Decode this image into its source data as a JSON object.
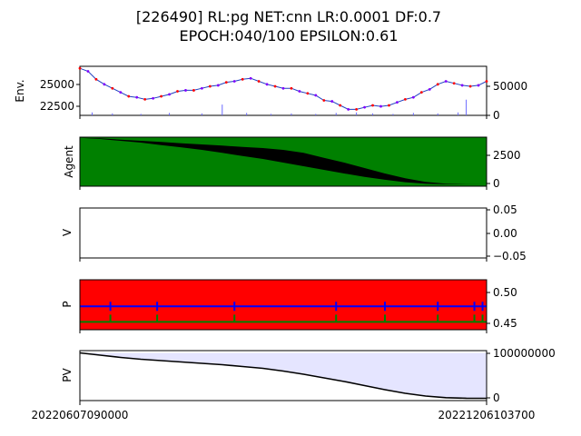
{
  "figure": {
    "title_line1": "[226490] RL:pg NET:cnn LR:0.0001 DF:0.7",
    "title_line2": "EPOCH:040/100 EPSILON:0.61",
    "x_start_label": "20220607090000",
    "x_end_label": "20221206103700"
  },
  "colors": {
    "price_line": "#1f3fbf",
    "buy_marker": "#ff0000",
    "sell_marker": "#8000ff",
    "volume": "#6a6aff",
    "agent_fill": "#008000",
    "agent_line": "#000000",
    "p_background": "#ff0000",
    "p_blue": "#0000ff",
    "p_green": "#008000",
    "pv_fill": "#e5e5ff",
    "pv_line": "#000000"
  },
  "chart_data": [
    {
      "type": "line",
      "ylabel": "Env.",
      "yticks_left": [
        "25000",
        "22500"
      ],
      "yticks_right": [
        "50000",
        "0"
      ],
      "price_ylim": [
        21900,
        26800
      ],
      "volume_ylim": [
        0,
        100000
      ],
      "price_series": {
        "x": [
          0,
          0.02,
          0.04,
          0.06,
          0.08,
          0.1,
          0.12,
          0.14,
          0.16,
          0.18,
          0.2,
          0.22,
          0.24,
          0.26,
          0.28,
          0.3,
          0.32,
          0.34,
          0.36,
          0.38,
          0.4,
          0.42,
          0.44,
          0.46,
          0.48,
          0.5,
          0.52,
          0.54,
          0.56,
          0.58,
          0.6,
          0.62,
          0.64,
          0.66,
          0.68,
          0.7,
          0.72,
          0.74,
          0.76,
          0.78,
          0.8,
          0.82,
          0.84,
          0.86,
          0.88,
          0.9,
          0.92,
          0.94,
          0.96,
          0.98,
          1.0
        ],
        "values": [
          26600,
          26300,
          25500,
          25000,
          24600,
          24200,
          23800,
          23700,
          23500,
          23600,
          23800,
          24000,
          24300,
          24400,
          24400,
          24600,
          24800,
          24900,
          25200,
          25300,
          25500,
          25600,
          25300,
          25000,
          24800,
          24600,
          24600,
          24300,
          24100,
          23900,
          23400,
          23300,
          22900,
          22500,
          22500,
          22700,
          22900,
          22800,
          22900,
          23200,
          23500,
          23700,
          24200,
          24500,
          25000,
          25300,
          25100,
          24900,
          24800,
          24900,
          25300
        ]
      },
      "volume_series": {
        "x": [
          0.03,
          0.08,
          0.15,
          0.22,
          0.3,
          0.35,
          0.41,
          0.47,
          0.52,
          0.58,
          0.63,
          0.68,
          0.72,
          0.77,
          0.82,
          0.88,
          0.93,
          0.95
        ],
        "values": [
          6000,
          4000,
          3000,
          5000,
          4000,
          22000,
          5000,
          3000,
          4000,
          3000,
          5000,
          6000,
          4000,
          3000,
          5000,
          4000,
          6000,
          32000
        ]
      }
    },
    {
      "type": "area",
      "ylabel": "Agent",
      "yticks_right": [
        "2500",
        "0"
      ],
      "ylim": [
        -150,
        3900
      ],
      "x": [
        0,
        0.05,
        0.1,
        0.15,
        0.2,
        0.25,
        0.3,
        0.35,
        0.4,
        0.45,
        0.5,
        0.55,
        0.6,
        0.65,
        0.7,
        0.75,
        0.8,
        0.85,
        0.9,
        0.95,
        1.0
      ],
      "holdings": [
        3850,
        3750,
        3600,
        3450,
        3250,
        3050,
        2850,
        2600,
        2350,
        2100,
        1800,
        1500,
        1200,
        900,
        620,
        380,
        180,
        60,
        10,
        0,
        0
      ],
      "capacity": [
        3850,
        3800,
        3700,
        3600,
        3500,
        3400,
        3300,
        3200,
        3100,
        3000,
        2850,
        2600,
        2200,
        1800,
        1350,
        900,
        500,
        200,
        50,
        5,
        0
      ]
    },
    {
      "type": "line",
      "ylabel": "V",
      "yticks_right": [
        "0.05",
        "0.00",
        "−0.05"
      ],
      "ylim": [
        -0.055,
        0.055
      ],
      "x": [],
      "values": []
    },
    {
      "type": "line",
      "ylabel": "P",
      "yticks_right": [
        "0.50",
        "0.45"
      ],
      "ylim": [
        0.44,
        0.52
      ],
      "series": [
        {
          "x": [
            0,
            1
          ],
          "values": [
            0.4775,
            0.4775
          ]
        },
        {
          "x": [
            0,
            1
          ],
          "values": [
            0.4525,
            0.4525
          ]
        }
      ],
      "spikes_x": [
        0.075,
        0.19,
        0.38,
        0.63,
        0.75,
        0.88,
        0.97,
        0.99
      ]
    },
    {
      "type": "area",
      "ylabel": "PV",
      "yticks_right": [
        "100000000",
        "0"
      ],
      "ylim": [
        -5000000,
        105000000
      ],
      "x": [
        0,
        0.05,
        0.1,
        0.15,
        0.2,
        0.25,
        0.3,
        0.35,
        0.4,
        0.45,
        0.5,
        0.55,
        0.6,
        0.65,
        0.7,
        0.75,
        0.8,
        0.85,
        0.9,
        0.95,
        1.0
      ],
      "values": [
        100000000,
        95000000,
        90000000,
        86000000,
        83000000,
        80000000,
        77000000,
        74000000,
        70000000,
        66000000,
        60000000,
        53000000,
        45000000,
        37000000,
        28000000,
        19000000,
        11000000,
        5000000,
        1500000,
        300000,
        0
      ]
    }
  ]
}
